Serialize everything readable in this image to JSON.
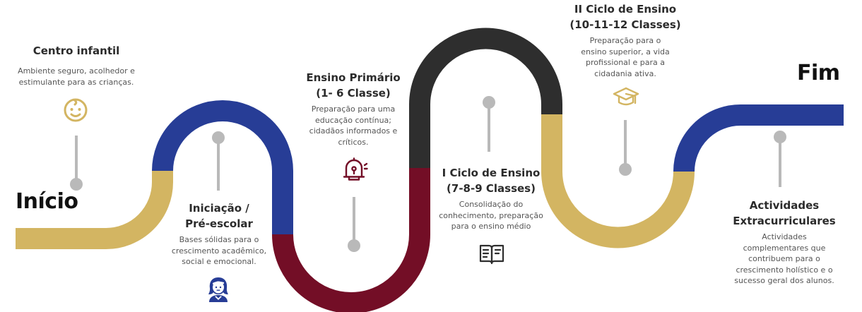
{
  "colors": {
    "gold": "#D3B562",
    "blue": "#273D96",
    "maroon": "#730E26",
    "dark": "#2E2E2E",
    "marker": "#B9B9B9"
  },
  "start_label": "Início",
  "end_label": "Fim",
  "stages": [
    {
      "title": [
        "Centro infantil"
      ],
      "desc": [
        "Ambiente seguro, acolhedor e",
        "estimulante para as crianças."
      ],
      "icon": "baby-face-icon"
    },
    {
      "title": [
        "Iniciação /",
        "Pré-escolar"
      ],
      "desc": [
        "Bases sólidas para o",
        "crescimento acadêmico,",
        "social e emocional."
      ],
      "icon": "child-icon"
    },
    {
      "title": [
        "Ensino Primário",
        "(1- 6 Classe)"
      ],
      "desc": [
        "Preparação para uma",
        "educação contínua;",
        "cidadãos informados e",
        "críticos."
      ],
      "icon": "school-bell-icon"
    },
    {
      "title": [
        "I Ciclo de Ensino",
        "(7-8-9 Classes)"
      ],
      "desc": [
        "Consolidação do",
        "conhecimento, preparação",
        "para o ensino médio"
      ],
      "icon": "open-book-icon"
    },
    {
      "title": [
        "II Ciclo de Ensino",
        "(10-11-12 Classes)"
      ],
      "desc": [
        "Preparação para o",
        "ensino superior, a vida",
        "profissional e para a",
        "cidadania ativa."
      ],
      "icon": "graduation-cap-icon"
    },
    {
      "title": [
        "Actividades",
        "Extracurriculares"
      ],
      "desc": [
        "Actividades",
        "complementares que",
        "contribuem para o",
        "crescimento holístico e o",
        "sucesso geral dos alunos."
      ],
      "icon": ""
    }
  ]
}
